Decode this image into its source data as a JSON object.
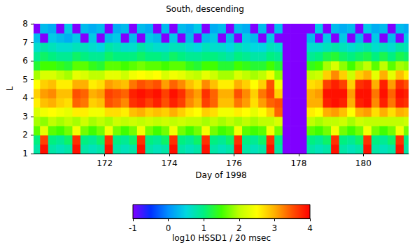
{
  "chart_data": {
    "type": "heatmap",
    "title": "South, descending",
    "x_label": "Day of 1998",
    "y_label": "L",
    "x_bins": [
      169.75,
      170,
      170.25,
      170.5,
      170.75,
      171,
      171.25,
      171.5,
      171.75,
      172,
      172.25,
      172.5,
      172.75,
      173,
      173.25,
      173.5,
      173.75,
      174,
      174.25,
      174.5,
      174.75,
      175,
      175.25,
      175.5,
      175.75,
      176,
      176.25,
      176.5,
      176.75,
      177,
      177.25,
      177.5,
      177.75,
      178,
      178.25,
      178.5,
      178.75,
      179,
      179.25,
      179.5,
      179.75,
      180,
      180.25,
      180.5,
      180.75,
      181,
      181.25,
      181.5
    ],
    "y_bins": [
      1,
      1.5,
      2,
      2.5,
      3,
      3.5,
      4,
      4.5,
      5,
      5.5,
      6,
      6.5,
      7,
      7.5,
      8
    ],
    "values": [
      [
        0.8,
        1.0,
        1.6,
        1.9,
        2.2,
        2.6,
        2.8,
        2.5,
        1.9,
        1.3,
        0.9,
        0.6,
        0.3,
        -1
      ],
      [
        3.9,
        3.6,
        2.3,
        1.8,
        2.4,
        2.9,
        3.1,
        2.8,
        2.2,
        1.5,
        1.1,
        0.8,
        -1,
        0.3
      ],
      [
        0.8,
        1.0,
        1.6,
        2.0,
        2.5,
        3.0,
        3.2,
        2.9,
        2.2,
        1.5,
        1.0,
        0.7,
        0.4,
        0.2
      ],
      [
        0.7,
        0.9,
        1.5,
        1.9,
        2.4,
        2.8,
        2.9,
        2.6,
        2.0,
        1.4,
        0.9,
        0.6,
        0.3,
        -1
      ],
      [
        0.8,
        1.1,
        1.7,
        2.0,
        2.3,
        2.7,
        2.9,
        2.6,
        1.9,
        1.3,
        0.9,
        0.6,
        0.2,
        0.4
      ],
      [
        3.9,
        3.7,
        2.4,
        1.9,
        2.6,
        3.4,
        3.5,
        3.0,
        2.3,
        1.6,
        1.1,
        0.7,
        0.4,
        -1
      ],
      [
        0.8,
        1.0,
        1.7,
        2.1,
        2.6,
        3.3,
        3.4,
        3.0,
        2.2,
        1.6,
        1.0,
        0.7,
        -1,
        0.3
      ],
      [
        0.7,
        0.9,
        1.5,
        1.9,
        2.4,
        2.8,
        3.0,
        2.6,
        2.0,
        1.4,
        0.9,
        0.6,
        0.4,
        0.2
      ],
      [
        0.8,
        1.1,
        1.7,
        2.0,
        2.4,
        2.9,
        3.1,
        2.7,
        2.0,
        1.3,
        0.9,
        0.5,
        -1,
        0.3
      ],
      [
        3.9,
        3.7,
        2.4,
        1.9,
        2.7,
        3.5,
        3.6,
        3.1,
        2.3,
        1.6,
        1.1,
        0.8,
        0.3,
        -1
      ],
      [
        0.8,
        1.0,
        1.7,
        2.1,
        2.7,
        3.4,
        3.5,
        3.0,
        2.3,
        1.6,
        1.0,
        0.7,
        0.4,
        0.2
      ],
      [
        0.7,
        0.9,
        1.5,
        2.0,
        2.6,
        3.2,
        3.4,
        2.9,
        2.1,
        1.5,
        1.0,
        0.6,
        -1,
        0.3
      ],
      [
        0.8,
        1.1,
        1.7,
        2.1,
        2.9,
        3.7,
        3.8,
        3.3,
        2.4,
        1.6,
        1.0,
        0.6,
        0.3,
        -1
      ],
      [
        3.9,
        3.7,
        2.4,
        2.0,
        3.0,
        3.8,
        3.9,
        3.5,
        2.5,
        1.7,
        1.1,
        0.8,
        -1,
        0.3
      ],
      [
        0.8,
        1.0,
        1.7,
        2.1,
        2.8,
        3.6,
        3.8,
        3.4,
        2.4,
        1.6,
        1.0,
        0.7,
        0.4,
        0.2
      ],
      [
        0.7,
        0.9,
        1.5,
        2.0,
        2.9,
        3.8,
        3.9,
        3.5,
        2.5,
        1.6,
        1.0,
        0.6,
        0.3,
        -1
      ],
      [
        0.8,
        1.1,
        1.7,
        2.1,
        2.8,
        3.5,
        3.6,
        3.1,
        2.2,
        1.5,
        0.9,
        0.6,
        -1,
        0.3
      ],
      [
        3.9,
        3.7,
        2.4,
        2.0,
        3.0,
        3.8,
        3.9,
        3.4,
        2.4,
        1.6,
        1.1,
        0.7,
        0.4,
        -1
      ],
      [
        0.8,
        1.0,
        1.7,
        2.1,
        2.8,
        3.6,
        3.7,
        3.2,
        2.3,
        1.6,
        1.0,
        0.7,
        -1,
        0.3
      ],
      [
        0.7,
        0.9,
        1.5,
        2.0,
        2.6,
        3.2,
        3.3,
        2.9,
        2.1,
        1.4,
        0.9,
        0.6,
        0.3,
        0.2
      ],
      [
        0.8,
        1.1,
        1.7,
        2.0,
        2.5,
        3.0,
        3.1,
        2.7,
        2.0,
        1.3,
        0.9,
        0.5,
        -1,
        0.4
      ],
      [
        3.9,
        3.7,
        2.4,
        1.9,
        2.8,
        3.6,
        3.7,
        3.2,
        2.3,
        1.5,
        1.0,
        0.7,
        0.3,
        -1
      ],
      [
        0.8,
        1.0,
        1.7,
        2.0,
        2.7,
        3.4,
        3.4,
        2.9,
        2.1,
        1.5,
        1.0,
        0.6,
        0.4,
        0.2
      ],
      [
        0.7,
        0.9,
        1.5,
        1.9,
        2.4,
        2.9,
        3.0,
        2.6,
        1.9,
        1.3,
        0.9,
        0.6,
        -1,
        0.3
      ],
      [
        0.8,
        1.1,
        1.6,
        2.0,
        2.4,
        2.9,
        3.0,
        2.6,
        1.9,
        1.3,
        0.8,
        0.5,
        0.3,
        -1
      ],
      [
        3.9,
        3.7,
        2.4,
        1.9,
        2.6,
        3.3,
        3.5,
        3.0,
        2.2,
        1.5,
        1.0,
        0.7,
        -1,
        0.3
      ],
      [
        0.8,
        1.0,
        1.6,
        2.0,
        2.5,
        3.1,
        3.2,
        2.8,
        2.0,
        1.4,
        0.9,
        0.6,
        0.4,
        0.2
      ],
      [
        0.7,
        0.9,
        1.5,
        1.9,
        2.3,
        2.7,
        2.8,
        2.5,
        1.9,
        1.3,
        0.8,
        0.5,
        0.3,
        -1
      ],
      [
        0.8,
        1.1,
        1.6,
        2.0,
        2.5,
        3.1,
        3.3,
        2.8,
        2.0,
        1.3,
        0.8,
        0.5,
        -1,
        0.3
      ],
      [
        3.9,
        3.7,
        2.4,
        2.0,
        2.8,
        3.4,
        3.6,
        3.5,
        2.4,
        1.5,
        1.0,
        0.7,
        0.4,
        -1
      ],
      [
        0.8,
        1.0,
        1.7,
        2.2,
        3.4,
        3.5,
        2.8,
        2.4,
        1.8,
        1.3,
        0.9,
        0.6,
        -1,
        0.3
      ],
      [
        -1,
        -1,
        -1,
        -1,
        -1,
        -1,
        -1,
        -1,
        -1,
        -1,
        -1,
        -1,
        -1,
        -1
      ],
      [
        -1,
        -1,
        -1,
        -1,
        -1,
        -1,
        -1,
        -1,
        -1,
        -1,
        -1,
        -1,
        -1,
        -1
      ],
      [
        -1,
        -1,
        -1,
        -1,
        -1,
        -1,
        -1,
        -1,
        -1,
        -1,
        -1,
        -1,
        -1,
        -1
      ],
      [
        0.8,
        1.0,
        1.6,
        2.0,
        2.6,
        3.0,
        3.0,
        2.7,
        2.0,
        1.4,
        0.9,
        0.6,
        0.3,
        -1
      ],
      [
        0.7,
        0.9,
        1.5,
        1.9,
        2.5,
        3.0,
        3.1,
        2.8,
        2.1,
        1.5,
        1.0,
        0.6,
        -1,
        0.4
      ],
      [
        0.8,
        1.1,
        1.7,
        2.0,
        3.0,
        3.8,
        3.9,
        3.6,
        2.8,
        1.9,
        1.2,
        0.7,
        0.4,
        -1
      ],
      [
        3.9,
        3.7,
        2.4,
        2.0,
        3.1,
        3.9,
        3.9,
        3.8,
        3.2,
        2.2,
        1.3,
        0.8,
        -1,
        0.3
      ],
      [
        0.8,
        1.0,
        1.7,
        2.1,
        2.9,
        3.8,
        3.9,
        3.6,
        2.8,
        1.8,
        1.1,
        0.7,
        0.4,
        0.2
      ],
      [
        0.7,
        0.9,
        1.5,
        1.9,
        2.5,
        3.0,
        3.1,
        2.8,
        2.1,
        1.5,
        1.0,
        0.6,
        -1,
        0.3
      ],
      [
        0.8,
        1.1,
        1.7,
        2.1,
        3.0,
        3.8,
        3.9,
        3.7,
        2.8,
        1.8,
        1.1,
        0.7,
        0.3,
        -1
      ],
      [
        3.9,
        3.7,
        2.4,
        2.0,
        3.1,
        3.9,
        3.9,
        3.8,
        3.0,
        2.0,
        1.2,
        0.8,
        -1,
        0.4
      ],
      [
        0.8,
        1.0,
        1.7,
        2.0,
        2.7,
        3.2,
        3.3,
        3.0,
        2.3,
        1.6,
        1.0,
        0.6,
        0.4,
        0.2
      ],
      [
        0.7,
        0.9,
        1.5,
        2.0,
        3.0,
        3.8,
        3.9,
        3.8,
        3.0,
        2.0,
        1.2,
        0.7,
        -1,
        0.3
      ],
      [
        0.8,
        1.1,
        1.7,
        2.0,
        2.7,
        3.3,
        3.4,
        3.1,
        2.3,
        1.6,
        1.0,
        0.6,
        0.3,
        -1
      ],
      [
        3.9,
        3.7,
        2.4,
        2.0,
        3.0,
        3.8,
        3.9,
        3.7,
        2.9,
        1.9,
        1.2,
        0.8,
        -1,
        0.3
      ],
      [
        0.8,
        1.0,
        1.7,
        2.1,
        2.9,
        3.7,
        3.8,
        3.5,
        2.6,
        1.8,
        1.1,
        0.7,
        0.4,
        0.2
      ]
    ],
    "xlim": [
      169.8,
      181.4
    ],
    "xticks": [
      172,
      174,
      176,
      178,
      180
    ],
    "ylim": [
      1,
      8
    ],
    "yticks": [
      1,
      2,
      3,
      4,
      5,
      6,
      7,
      8
    ],
    "colorbar": {
      "label": "log10 HSSD1 / 20 msec",
      "range": [
        -1,
        4
      ],
      "ticks": [
        -1,
        0,
        1,
        2,
        3,
        4
      ]
    }
  }
}
